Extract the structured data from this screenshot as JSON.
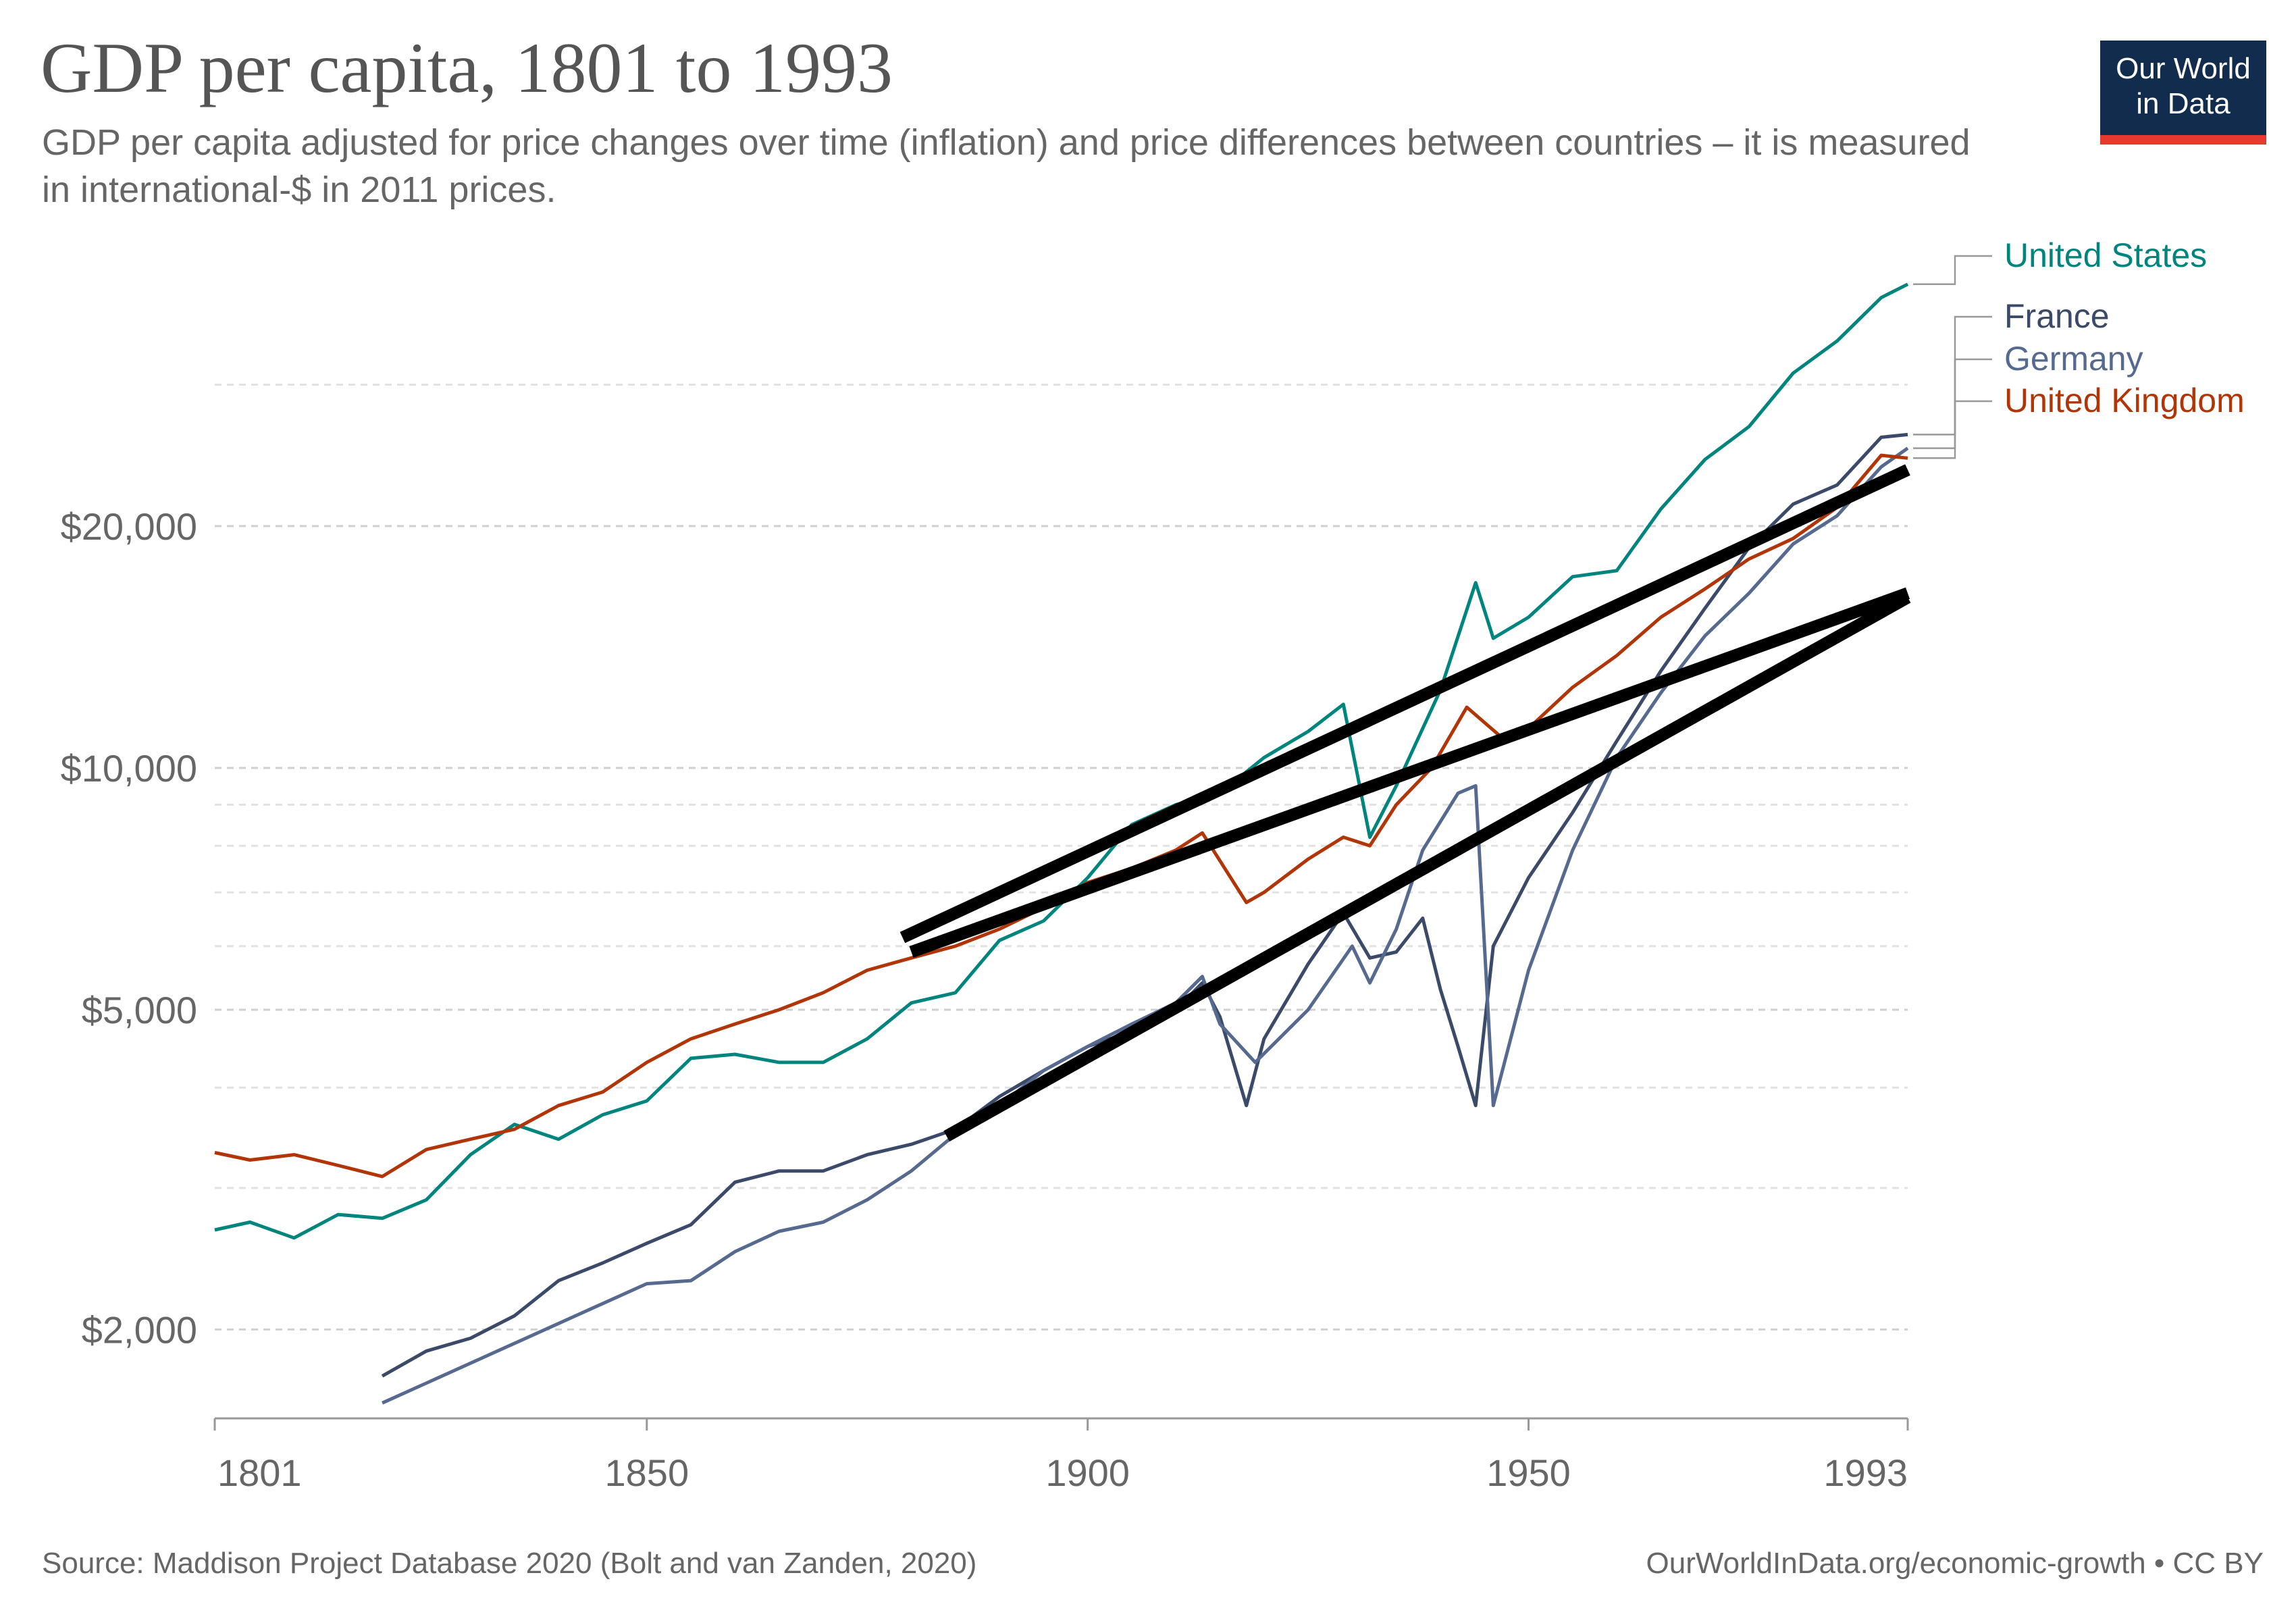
{
  "header": {
    "title": "GDP per capita, 1801 to 1993",
    "subtitle": "GDP per capita adjusted for price changes over time (inflation) and price differences between countries – it is measured in international-$ in 2011 prices."
  },
  "logo": {
    "line1": "Our World",
    "line2": "in Data",
    "bg_color": "#122c4e",
    "accent_color": "#e63a2e"
  },
  "footer": {
    "source": "Source: Maddison Project Database 2020 (Bolt and van Zanden, 2020)",
    "credit": "OurWorldInData.org/economic-growth • CC BY"
  },
  "chart_data": {
    "type": "line",
    "title": "GDP per capita, 1801 to 1993",
    "yscale": "log",
    "xlim": [
      1801,
      1993
    ],
    "ylim": [
      1550,
      45000
    ],
    "x_ticks": [
      1801,
      1850,
      1900,
      1950,
      1993
    ],
    "y_ticks": [
      {
        "value": 2000,
        "label": "$2,000"
      },
      {
        "value": 5000,
        "label": "$5,000"
      },
      {
        "value": 10000,
        "label": "$10,000"
      },
      {
        "value": 20000,
        "label": "$20,000"
      }
    ],
    "minor_gridlines": [
      3000,
      4000,
      6000,
      7000,
      8000,
      9000,
      30000
    ],
    "grid": true,
    "legend": "right, labels at line ends",
    "series": [
      {
        "name": "United States",
        "color": "#00847e",
        "points": [
          [
            1801,
            2660
          ],
          [
            1805,
            2720
          ],
          [
            1810,
            2600
          ],
          [
            1815,
            2780
          ],
          [
            1820,
            2750
          ],
          [
            1825,
            2900
          ],
          [
            1830,
            3300
          ],
          [
            1835,
            3600
          ],
          [
            1840,
            3450
          ],
          [
            1845,
            3700
          ],
          [
            1850,
            3850
          ],
          [
            1855,
            4350
          ],
          [
            1860,
            4400
          ],
          [
            1865,
            4300
          ],
          [
            1870,
            4300
          ],
          [
            1875,
            4600
          ],
          [
            1880,
            5100
          ],
          [
            1885,
            5250
          ],
          [
            1890,
            6100
          ],
          [
            1895,
            6450
          ],
          [
            1900,
            7300
          ],
          [
            1905,
            8500
          ],
          [
            1910,
            9000
          ],
          [
            1915,
            9300
          ],
          [
            1920,
            10300
          ],
          [
            1925,
            11100
          ],
          [
            1929,
            12000
          ],
          [
            1932,
            8200
          ],
          [
            1935,
            9500
          ],
          [
            1940,
            12500
          ],
          [
            1944,
            17000
          ],
          [
            1946,
            14500
          ],
          [
            1950,
            15400
          ],
          [
            1955,
            17300
          ],
          [
            1960,
            17600
          ],
          [
            1965,
            21000
          ],
          [
            1970,
            24200
          ],
          [
            1975,
            26600
          ],
          [
            1980,
            31000
          ],
          [
            1985,
            34000
          ],
          [
            1990,
            38500
          ],
          [
            1993,
            40000
          ]
        ]
      },
      {
        "name": "France",
        "color": "#3a4a68",
        "points": [
          [
            1820,
            1750
          ],
          [
            1825,
            1880
          ],
          [
            1830,
            1950
          ],
          [
            1835,
            2080
          ],
          [
            1840,
            2300
          ],
          [
            1845,
            2420
          ],
          [
            1850,
            2560
          ],
          [
            1855,
            2700
          ],
          [
            1860,
            3050
          ],
          [
            1865,
            3150
          ],
          [
            1870,
            3150
          ],
          [
            1875,
            3300
          ],
          [
            1880,
            3400
          ],
          [
            1885,
            3550
          ],
          [
            1890,
            3900
          ],
          [
            1895,
            4200
          ],
          [
            1900,
            4500
          ],
          [
            1905,
            4700
          ],
          [
            1910,
            5000
          ],
          [
            1913,
            5400
          ],
          [
            1915,
            4900
          ],
          [
            1918,
            3800
          ],
          [
            1920,
            4600
          ],
          [
            1925,
            5700
          ],
          [
            1929,
            6600
          ],
          [
            1932,
            5800
          ],
          [
            1935,
            5900
          ],
          [
            1938,
            6500
          ],
          [
            1940,
            5300
          ],
          [
            1942,
            4500
          ],
          [
            1944,
            3800
          ],
          [
            1946,
            6000
          ],
          [
            1950,
            7300
          ],
          [
            1955,
            8800
          ],
          [
            1960,
            10800
          ],
          [
            1965,
            13200
          ],
          [
            1970,
            15800
          ],
          [
            1975,
            18800
          ],
          [
            1980,
            21300
          ],
          [
            1985,
            22500
          ],
          [
            1990,
            25800
          ],
          [
            1993,
            26000
          ]
        ]
      },
      {
        "name": "Germany",
        "color": "#56698f",
        "points": [
          [
            1820,
            1620
          ],
          [
            1850,
            2280
          ],
          [
            1855,
            2300
          ],
          [
            1860,
            2500
          ],
          [
            1865,
            2650
          ],
          [
            1870,
            2720
          ],
          [
            1875,
            2900
          ],
          [
            1880,
            3150
          ],
          [
            1885,
            3500
          ],
          [
            1890,
            3800
          ],
          [
            1895,
            4200
          ],
          [
            1900,
            4500
          ],
          [
            1905,
            4800
          ],
          [
            1910,
            5100
          ],
          [
            1913,
            5500
          ],
          [
            1915,
            4800
          ],
          [
            1919,
            4300
          ],
          [
            1925,
            5000
          ],
          [
            1930,
            6000
          ],
          [
            1932,
            5400
          ],
          [
            1935,
            6300
          ],
          [
            1938,
            7900
          ],
          [
            1942,
            9300
          ],
          [
            1944,
            9500
          ],
          [
            1946,
            3800
          ],
          [
            1950,
            5600
          ],
          [
            1955,
            7900
          ],
          [
            1960,
            10300
          ],
          [
            1965,
            12400
          ],
          [
            1970,
            14600
          ],
          [
            1975,
            16500
          ],
          [
            1980,
            19000
          ],
          [
            1985,
            20600
          ],
          [
            1990,
            23700
          ],
          [
            1993,
            25000
          ]
        ]
      },
      {
        "name": "United Kingdom",
        "color": "#b13507",
        "points": [
          [
            1801,
            3320
          ],
          [
            1805,
            3250
          ],
          [
            1810,
            3300
          ],
          [
            1815,
            3200
          ],
          [
            1820,
            3100
          ],
          [
            1825,
            3350
          ],
          [
            1830,
            3450
          ],
          [
            1835,
            3550
          ],
          [
            1840,
            3800
          ],
          [
            1845,
            3950
          ],
          [
            1850,
            4300
          ],
          [
            1855,
            4600
          ],
          [
            1860,
            4800
          ],
          [
            1865,
            5000
          ],
          [
            1870,
            5250
          ],
          [
            1875,
            5600
          ],
          [
            1880,
            5800
          ],
          [
            1885,
            6000
          ],
          [
            1890,
            6300
          ],
          [
            1895,
            6700
          ],
          [
            1900,
            7200
          ],
          [
            1905,
            7500
          ],
          [
            1910,
            7900
          ],
          [
            1913,
            8300
          ],
          [
            1918,
            6800
          ],
          [
            1920,
            7000
          ],
          [
            1925,
            7700
          ],
          [
            1929,
            8200
          ],
          [
            1932,
            8000
          ],
          [
            1935,
            9000
          ],
          [
            1939,
            10000
          ],
          [
            1943,
            11900
          ],
          [
            1947,
            10900
          ],
          [
            1950,
            11200
          ],
          [
            1955,
            12600
          ],
          [
            1960,
            13800
          ],
          [
            1965,
            15400
          ],
          [
            1970,
            16700
          ],
          [
            1975,
            18200
          ],
          [
            1980,
            19300
          ],
          [
            1985,
            21100
          ],
          [
            1990,
            24500
          ],
          [
            1993,
            24300
          ]
        ]
      }
    ],
    "annotations": [
      {
        "type": "trend-line",
        "color": "#000000",
        "from": [
          1879,
          6150
        ],
        "to": [
          1993,
          23500
        ]
      },
      {
        "type": "trend-line",
        "color": "#000000",
        "from": [
          1880,
          5900
        ],
        "to": [
          1993,
          16500
        ]
      },
      {
        "type": "trend-line",
        "color": "#000000",
        "from": [
          1884,
          3480
        ],
        "to": [
          1993,
          16300
        ]
      }
    ]
  }
}
